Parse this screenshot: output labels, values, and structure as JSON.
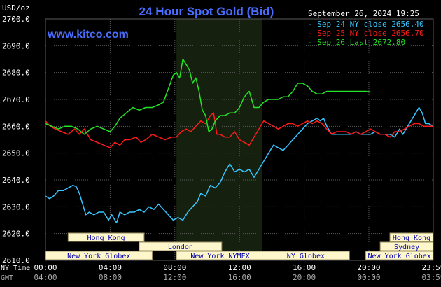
{
  "chart_data": {
    "type": "line",
    "title": "24 Hour Spot Gold (Bid)",
    "date_label": "September 26, 2024 19:25",
    "site": "www.kitco.com",
    "y_unit_label": "USD/oz",
    "ylim": [
      2610,
      2700
    ],
    "yticks": [
      "2700.0",
      "2690.0",
      "2680.0",
      "2670.0",
      "2660.0",
      "2650.0",
      "2640.0",
      "2630.0",
      "2620.0",
      "2610.0"
    ],
    "x_row_labels": {
      "ny": "NY Time",
      "gmt": "GMT"
    },
    "x_ticks_ny": [
      "00:00",
      "04:00",
      "08:00",
      "12:00",
      "16:00",
      "20:00",
      "23:59"
    ],
    "x_ticks_gmt": [
      "04:00",
      "08:00",
      "12:00",
      "16:00",
      "20:00",
      "00:00",
      "03:59"
    ],
    "x_hours": [
      0,
      4,
      8,
      12,
      16,
      20,
      23.983
    ],
    "grid": true,
    "legend_position": "top-right",
    "colors": {
      "background": "#000000",
      "plot_background": "#000000",
      "grid": "#5a5a5a",
      "highlight": "#15200f",
      "title": "#4a6dff",
      "site": "#4a6dff",
      "text": "#ffffff",
      "band_fill": "#fff7cc",
      "band_text": "#0000b0",
      "band_border": "#9a8f60"
    },
    "highlight_hours": [
      8.1,
      13.4
    ],
    "series": [
      {
        "name": "Sep 24 NY close 2656.40",
        "color": "#37c6ff",
        "points": [
          [
            0,
            2634
          ],
          [
            0.25,
            2633
          ],
          [
            0.5,
            2634
          ],
          [
            0.8,
            2636
          ],
          [
            1.1,
            2636
          ],
          [
            1.4,
            2637
          ],
          [
            1.7,
            2638
          ],
          [
            1.9,
            2637.5
          ],
          [
            2.1,
            2635
          ],
          [
            2.3,
            2631
          ],
          [
            2.5,
            2627
          ],
          [
            2.7,
            2628
          ],
          [
            3.0,
            2627
          ],
          [
            3.3,
            2628
          ],
          [
            3.6,
            2628
          ],
          [
            3.9,
            2625
          ],
          [
            4.1,
            2627
          ],
          [
            4.4,
            2624
          ],
          [
            4.6,
            2628
          ],
          [
            4.9,
            2627
          ],
          [
            5.2,
            2628
          ],
          [
            5.5,
            2628
          ],
          [
            5.8,
            2629
          ],
          [
            6.1,
            2628
          ],
          [
            6.4,
            2630
          ],
          [
            6.7,
            2629
          ],
          [
            7.0,
            2631
          ],
          [
            7.3,
            2629
          ],
          [
            7.6,
            2627
          ],
          [
            7.9,
            2625
          ],
          [
            8.2,
            2626
          ],
          [
            8.5,
            2625
          ],
          [
            8.8,
            2628
          ],
          [
            9.1,
            2630
          ],
          [
            9.4,
            2632
          ],
          [
            9.6,
            2635
          ],
          [
            9.9,
            2634
          ],
          [
            10.2,
            2638
          ],
          [
            10.5,
            2637
          ],
          [
            10.8,
            2639
          ],
          [
            11.1,
            2643
          ],
          [
            11.4,
            2646
          ],
          [
            11.7,
            2643
          ],
          [
            12.0,
            2644
          ],
          [
            12.3,
            2643
          ],
          [
            12.6,
            2644
          ],
          [
            12.9,
            2641
          ],
          [
            13.2,
            2644
          ],
          [
            13.5,
            2647
          ],
          [
            13.8,
            2650
          ],
          [
            14.1,
            2653
          ],
          [
            14.4,
            2652
          ],
          [
            14.7,
            2651
          ],
          [
            15.0,
            2653
          ],
          [
            15.3,
            2655
          ],
          [
            15.6,
            2657
          ],
          [
            15.9,
            2659
          ],
          [
            16.2,
            2661
          ],
          [
            16.5,
            2662
          ],
          [
            16.8,
            2663
          ],
          [
            17.0,
            2662
          ],
          [
            17.2,
            2663
          ],
          [
            17.4,
            2660
          ],
          [
            17.7,
            2657
          ],
          [
            18.0,
            2657
          ],
          [
            18.3,
            2657
          ],
          [
            18.6,
            2657
          ],
          [
            18.9,
            2657
          ],
          [
            19.2,
            2658
          ],
          [
            19.5,
            2657
          ],
          [
            19.8,
            2657
          ],
          [
            20.1,
            2657
          ],
          [
            20.4,
            2658
          ],
          [
            20.7,
            2657
          ],
          [
            21.0,
            2657
          ],
          [
            21.3,
            2657
          ],
          [
            21.6,
            2656
          ],
          [
            21.9,
            2659
          ],
          [
            22.1,
            2657
          ],
          [
            22.3,
            2659
          ],
          [
            22.5,
            2661
          ],
          [
            22.7,
            2663
          ],
          [
            22.9,
            2665
          ],
          [
            23.1,
            2667
          ],
          [
            23.3,
            2665
          ],
          [
            23.5,
            2661
          ],
          [
            23.7,
            2661
          ],
          [
            23.983,
            2660
          ]
        ]
      },
      {
        "name": "Sep 25 NY close 2656.70",
        "color": "#ff1a1a",
        "points": [
          [
            0,
            2662
          ],
          [
            0.3,
            2660
          ],
          [
            0.6,
            2659
          ],
          [
            1.0,
            2658
          ],
          [
            1.4,
            2657
          ],
          [
            1.8,
            2659
          ],
          [
            2.1,
            2657
          ],
          [
            2.4,
            2659
          ],
          [
            2.8,
            2655
          ],
          [
            3.2,
            2654
          ],
          [
            3.6,
            2653
          ],
          [
            4.0,
            2652
          ],
          [
            4.3,
            2654
          ],
          [
            4.6,
            2653
          ],
          [
            4.9,
            2655
          ],
          [
            5.2,
            2655
          ],
          [
            5.6,
            2656
          ],
          [
            5.9,
            2654
          ],
          [
            6.2,
            2655
          ],
          [
            6.6,
            2657
          ],
          [
            7.0,
            2656
          ],
          [
            7.4,
            2655
          ],
          [
            7.8,
            2656
          ],
          [
            8.1,
            2656
          ],
          [
            8.4,
            2658
          ],
          [
            8.7,
            2659
          ],
          [
            9.0,
            2658
          ],
          [
            9.3,
            2660
          ],
          [
            9.6,
            2662
          ],
          [
            9.9,
            2661
          ],
          [
            10.2,
            2664
          ],
          [
            10.4,
            2665
          ],
          [
            10.6,
            2657
          ],
          [
            10.8,
            2657
          ],
          [
            11.1,
            2656
          ],
          [
            11.4,
            2656
          ],
          [
            11.7,
            2658
          ],
          [
            12.0,
            2655
          ],
          [
            12.3,
            2654
          ],
          [
            12.6,
            2653
          ],
          [
            12.9,
            2656
          ],
          [
            13.2,
            2659
          ],
          [
            13.5,
            2662
          ],
          [
            13.8,
            2661
          ],
          [
            14.1,
            2660
          ],
          [
            14.4,
            2659
          ],
          [
            14.7,
            2660
          ],
          [
            15.0,
            2661
          ],
          [
            15.3,
            2661
          ],
          [
            15.6,
            2660
          ],
          [
            15.9,
            2661
          ],
          [
            16.2,
            2662
          ],
          [
            16.5,
            2661
          ],
          [
            16.8,
            2662
          ],
          [
            17.1,
            2661
          ],
          [
            17.4,
            2659
          ],
          [
            17.7,
            2657
          ],
          [
            18.0,
            2658
          ],
          [
            18.3,
            2658
          ],
          [
            18.6,
            2658
          ],
          [
            18.9,
            2657
          ],
          [
            19.2,
            2658
          ],
          [
            19.5,
            2657
          ],
          [
            19.8,
            2658
          ],
          [
            20.1,
            2659
          ],
          [
            20.4,
            2658
          ],
          [
            20.7,
            2657
          ],
          [
            21.0,
            2657
          ],
          [
            21.3,
            2656
          ],
          [
            21.6,
            2658
          ],
          [
            21.9,
            2658
          ],
          [
            22.2,
            2659
          ],
          [
            22.5,
            2660
          ],
          [
            22.8,
            2661
          ],
          [
            23.1,
            2661
          ],
          [
            23.4,
            2660
          ],
          [
            23.7,
            2660
          ],
          [
            23.983,
            2660
          ]
        ]
      },
      {
        "name": "Sep 26 Last 2672.80",
        "color": "#25e325",
        "points": [
          [
            0,
            2661
          ],
          [
            0.4,
            2660
          ],
          [
            0.8,
            2659
          ],
          [
            1.2,
            2660
          ],
          [
            1.6,
            2660
          ],
          [
            2.0,
            2659
          ],
          [
            2.4,
            2657
          ],
          [
            2.8,
            2659
          ],
          [
            3.2,
            2660
          ],
          [
            3.6,
            2659
          ],
          [
            4.0,
            2658
          ],
          [
            4.3,
            2660
          ],
          [
            4.6,
            2663
          ],
          [
            5.0,
            2665
          ],
          [
            5.4,
            2667
          ],
          [
            5.8,
            2666
          ],
          [
            6.2,
            2667
          ],
          [
            6.6,
            2667
          ],
          [
            7.0,
            2668
          ],
          [
            7.3,
            2669
          ],
          [
            7.6,
            2674
          ],
          [
            7.9,
            2679
          ],
          [
            8.1,
            2680
          ],
          [
            8.3,
            2678
          ],
          [
            8.5,
            2685
          ],
          [
            8.7,
            2683
          ],
          [
            8.9,
            2681
          ],
          [
            9.1,
            2676
          ],
          [
            9.3,
            2678
          ],
          [
            9.5,
            2673
          ],
          [
            9.7,
            2666
          ],
          [
            9.9,
            2664
          ],
          [
            10.1,
            2658
          ],
          [
            10.3,
            2659
          ],
          [
            10.5,
            2662
          ],
          [
            10.8,
            2664
          ],
          [
            11.1,
            2664
          ],
          [
            11.4,
            2665
          ],
          [
            11.7,
            2665
          ],
          [
            12.0,
            2667
          ],
          [
            12.3,
            2671
          ],
          [
            12.6,
            2673
          ],
          [
            12.9,
            2667
          ],
          [
            13.2,
            2667
          ],
          [
            13.5,
            2669
          ],
          [
            13.8,
            2670
          ],
          [
            14.1,
            2670
          ],
          [
            14.4,
            2670
          ],
          [
            14.7,
            2671
          ],
          [
            15.0,
            2671
          ],
          [
            15.3,
            2673
          ],
          [
            15.6,
            2676
          ],
          [
            15.9,
            2676
          ],
          [
            16.2,
            2675
          ],
          [
            16.5,
            2673
          ],
          [
            16.8,
            2672
          ],
          [
            17.1,
            2672
          ],
          [
            17.4,
            2673
          ],
          [
            17.7,
            2673
          ],
          [
            18.0,
            2673
          ],
          [
            18.3,
            2673
          ],
          [
            18.6,
            2673
          ],
          [
            18.9,
            2673
          ],
          [
            19.2,
            2673
          ],
          [
            19.5,
            2673
          ],
          [
            19.8,
            2673
          ],
          [
            20.1,
            2672.8
          ]
        ]
      }
    ],
    "sessions": [
      {
        "label": "Hong Kong",
        "row": 0,
        "start": 1.4,
        "end": 6.1
      },
      {
        "label": "London",
        "row": 1,
        "start": 5.8,
        "end": 10.9
      },
      {
        "label": "New York Globex",
        "row": 2,
        "start": 0,
        "end": 6.6
      },
      {
        "label": "New York NYMEX",
        "row": 2,
        "start": 8.1,
        "end": 13.5
      },
      {
        "label": "NY Globex",
        "row": 2,
        "start": 13.4,
        "end": 18.8
      },
      {
        "label": "Hong Kong",
        "row": 0,
        "start": 21.3,
        "end": 23.983
      },
      {
        "label": "Sydney",
        "row": 1,
        "start": 20.7,
        "end": 23.983
      },
      {
        "label": "New York Globex",
        "row": 2,
        "start": 19.8,
        "end": 23.983
      }
    ]
  }
}
